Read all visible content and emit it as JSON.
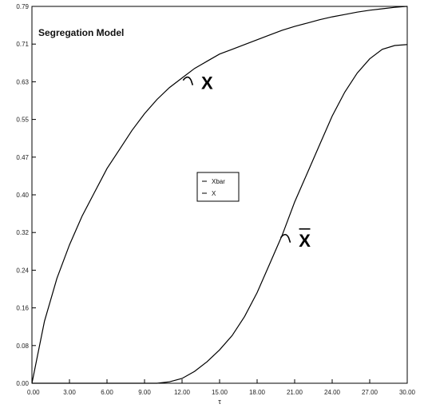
{
  "chart_data": {
    "type": "line",
    "title": "Segregation Model",
    "xlabel": "τ",
    "ylabel": "",
    "xlim": [
      0,
      30
    ],
    "ylim": [
      0,
      0.79
    ],
    "x_ticks": [
      "0.00",
      "3.00",
      "6.00",
      "9.00",
      "12.00",
      "15.00",
      "18.00",
      "21.00",
      "24.00",
      "27.00",
      "30.00"
    ],
    "y_ticks": [
      "0.00",
      "0.08",
      "0.16",
      "0.24",
      "0.32",
      "0.40",
      "0.47",
      "0.55",
      "0.63",
      "0.71",
      "0.79"
    ],
    "grid": false,
    "legend": {
      "placement": "center",
      "entries": [
        "Xbar",
        "X"
      ]
    },
    "series": [
      {
        "name": "Xbar",
        "x": [
          0,
          1,
          2,
          3,
          4,
          5,
          6,
          7,
          8,
          9,
          10,
          11,
          12,
          13,
          14,
          15,
          16,
          17,
          18,
          19,
          20,
          21,
          22,
          23,
          24,
          25,
          26,
          27,
          28,
          29,
          30
        ],
        "y": [
          0.0,
          0.13,
          0.22,
          0.29,
          0.35,
          0.4,
          0.45,
          0.49,
          0.53,
          0.565,
          0.595,
          0.62,
          0.64,
          0.66,
          0.675,
          0.69,
          0.7,
          0.71,
          0.72,
          0.73,
          0.74,
          0.748,
          0.755,
          0.762,
          0.768,
          0.773,
          0.778,
          0.782,
          0.785,
          0.788,
          0.79
        ]
      },
      {
        "name": "X",
        "x": [
          0,
          5,
          10,
          11,
          12,
          13,
          14,
          15,
          16,
          17,
          18,
          19,
          20,
          21,
          22,
          23,
          24,
          25,
          26,
          27,
          28,
          29,
          30
        ],
        "y": [
          0.0,
          0.0,
          0.0,
          0.003,
          0.01,
          0.025,
          0.045,
          0.07,
          0.1,
          0.14,
          0.19,
          0.25,
          0.31,
          0.38,
          0.44,
          0.5,
          0.56,
          0.61,
          0.65,
          0.68,
          0.7,
          0.708,
          0.71
        ]
      }
    ],
    "annotations": [
      {
        "text": "X",
        "x": 14,
        "y": 0.63
      },
      {
        "text": "X",
        "x": 21.8,
        "y": 0.3
      }
    ]
  }
}
